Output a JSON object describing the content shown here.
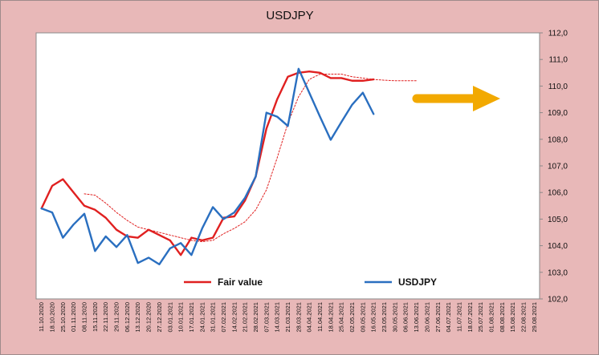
{
  "chart_data": {
    "type": "line",
    "title": "USDJPY",
    "ylim": [
      102.0,
      112.0
    ],
    "yticks": [
      "102,0",
      "103,0",
      "104,0",
      "105,0",
      "106,0",
      "107,0",
      "108,0",
      "109,0",
      "110,0",
      "111,0",
      "112,0"
    ],
    "categories": [
      "11.10.2020",
      "18.10.2020",
      "25.10.2020",
      "01.11.2020",
      "08.11.2020",
      "15.11.2020",
      "22.11.2020",
      "29.11.2020",
      "06.12.2020",
      "13.12.2020",
      "20.12.2020",
      "27.12.2020",
      "03.01.2021",
      "10.01.2021",
      "17.01.2021",
      "24.01.2021",
      "31.01.2021",
      "07.02.2021",
      "14.02.2021",
      "21.02.2021",
      "28.02.2021",
      "07.03.2021",
      "14.03.2021",
      "21.03.2021",
      "28.03.2021",
      "04.04.2021",
      "11.04.2021",
      "18.04.2021",
      "25.04.2021",
      "02.05.2021",
      "09.05.2021",
      "16.05.2021",
      "23.05.2021",
      "30.05.2021",
      "06.06.2021",
      "13.06.2021",
      "20.06.2021",
      "27.06.2021",
      "04.07.2021",
      "11.07.2021",
      "18.07.2021",
      "25.07.2021",
      "01.08.2021",
      "08.08.2021",
      "15.08.2021",
      "22.08.2021",
      "29.08.2021"
    ],
    "grid": false,
    "legend_position": "bottom",
    "series": [
      {
        "name": "Fair value",
        "color": "#e02020",
        "style": "solid",
        "values": [
          105.4,
          106.25,
          106.5,
          106.0,
          105.5,
          105.35,
          105.05,
          104.6,
          104.35,
          104.3,
          104.6,
          104.4,
          104.2,
          103.65,
          104.3,
          104.2,
          104.3,
          105.05,
          105.1,
          105.7,
          106.6,
          108.4,
          109.5,
          110.35,
          110.5,
          110.55,
          110.5,
          110.3,
          110.3,
          110.2,
          110.2,
          110.25,
          null,
          null,
          null,
          null,
          null,
          null,
          null,
          null,
          null,
          null,
          null,
          null,
          null,
          null,
          null
        ]
      },
      {
        "name": "USDJPY",
        "color": "#2a6fc0",
        "style": "solid",
        "values": [
          105.4,
          105.25,
          104.3,
          104.8,
          105.2,
          103.8,
          104.35,
          103.95,
          104.4,
          103.35,
          103.55,
          103.3,
          103.9,
          104.1,
          103.65,
          104.65,
          105.45,
          105.0,
          105.25,
          105.8,
          106.6,
          109.0,
          108.85,
          108.5,
          110.65,
          109.75,
          108.85,
          107.98,
          108.65,
          109.3,
          109.75,
          108.95,
          null,
          null,
          null,
          null,
          null,
          null,
          null,
          null,
          null,
          null,
          null,
          null,
          null,
          null,
          null
        ]
      },
      {
        "name": "",
        "color": "#e02020",
        "style": "dotted",
        "values": [
          null,
          null,
          null,
          null,
          105.95,
          105.9,
          105.6,
          105.25,
          104.95,
          104.7,
          104.6,
          104.5,
          104.4,
          104.3,
          104.2,
          104.15,
          104.2,
          104.45,
          104.65,
          104.9,
          105.35,
          106.1,
          107.3,
          108.6,
          109.6,
          110.25,
          110.45,
          110.45,
          110.45,
          110.35,
          110.3,
          110.25,
          110.22,
          110.2,
          110.2,
          110.2,
          null,
          null,
          null,
          null,
          null,
          null,
          null,
          null,
          null,
          null,
          null
        ]
      }
    ]
  },
  "arrow_color": "#f2a900"
}
